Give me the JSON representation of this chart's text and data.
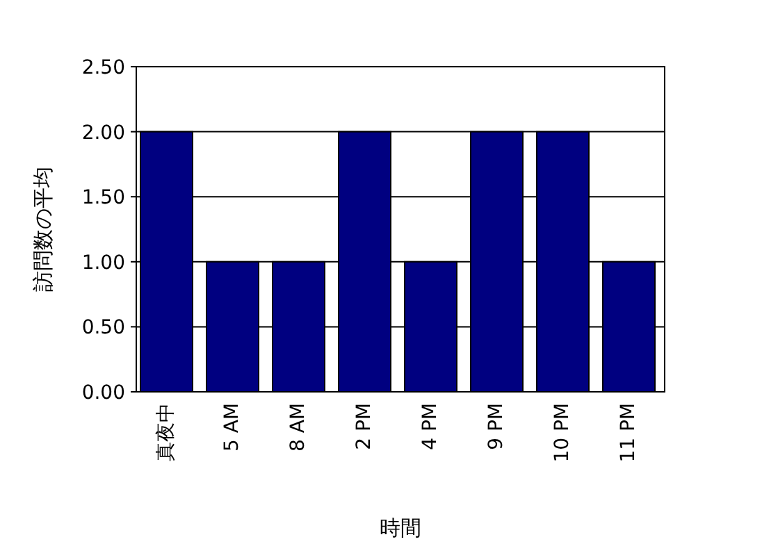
{
  "chart_data": {
    "type": "bar",
    "xlabel": "時間",
    "ylabel": "訪問数の平均",
    "categories": [
      "真夜中",
      "5 AM",
      "8 AM",
      "2 PM",
      "4 PM",
      "9 PM",
      "10 PM",
      "11 PM"
    ],
    "values": [
      2,
      1,
      1,
      2,
      1,
      2,
      2,
      1
    ],
    "color": "#000080",
    "ylim": [
      0,
      2.5
    ],
    "yticks": [
      {
        "value": 0,
        "label": "0.00"
      },
      {
        "value": 0.5,
        "label": "0.50"
      },
      {
        "value": 1,
        "label": "1.00"
      },
      {
        "value": 1.5,
        "label": "1.50"
      },
      {
        "value": 2,
        "label": "2.00"
      },
      {
        "value": 2.5,
        "label": "2.50"
      }
    ],
    "grid": "y"
  }
}
